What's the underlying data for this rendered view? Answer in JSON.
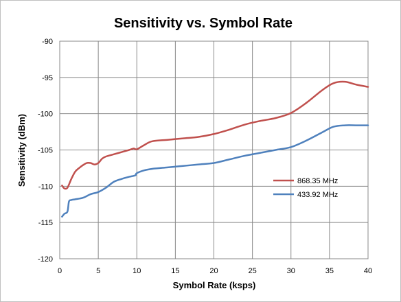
{
  "chart_data": {
    "type": "line",
    "title": "Sensitivity vs. Symbol Rate",
    "xlabel": "Symbol Rate (ksps)",
    "ylabel": "Sensitivity (dBm)",
    "xlim": [
      0,
      40
    ],
    "ylim": [
      -120,
      -90
    ],
    "xticks": [
      0,
      5,
      10,
      15,
      20,
      25,
      30,
      35,
      40
    ],
    "yticks": [
      -120,
      -115,
      -110,
      -105,
      -100,
      -95,
      -90
    ],
    "grid": true,
    "legend_position": "right",
    "series": [
      {
        "name": "868.35 MHz",
        "color": "#c0504d",
        "x": [
          0.3,
          0.6,
          1.0,
          1.5,
          2.0,
          2.5,
          3.0,
          3.5,
          4.0,
          4.5,
          5.0,
          5.5,
          6.0,
          7.0,
          8.0,
          9.0,
          9.6,
          10.0,
          11.0,
          12.0,
          14.0,
          16.0,
          18.0,
          20.0,
          22.0,
          24.0,
          26.0,
          28.0,
          30.0,
          32.0,
          34.0,
          35.5,
          37.0,
          38.5,
          40.0
        ],
        "values": [
          -109.9,
          -110.3,
          -110.2,
          -109.0,
          -108.0,
          -107.5,
          -107.1,
          -106.8,
          -106.8,
          -107.0,
          -106.8,
          -106.2,
          -105.9,
          -105.6,
          -105.3,
          -105.0,
          -104.8,
          -104.9,
          -104.3,
          -103.8,
          -103.6,
          -103.4,
          -103.2,
          -102.8,
          -102.2,
          -101.5,
          -101.0,
          -100.6,
          -99.9,
          -98.5,
          -96.8,
          -95.8,
          -95.6,
          -96.0,
          -96.3
        ]
      },
      {
        "name": "433.92 MHz",
        "color": "#4f81bd",
        "x": [
          0.3,
          0.6,
          1.0,
          1.2,
          1.5,
          2.0,
          3.0,
          4.0,
          5.0,
          6.0,
          7.0,
          8.0,
          9.0,
          9.8,
          10.0,
          11.0,
          12.0,
          14.0,
          16.0,
          18.0,
          20.0,
          22.0,
          24.0,
          26.0,
          28.0,
          30.0,
          32.0,
          34.0,
          35.5,
          37.0,
          38.5,
          40.0
        ],
        "values": [
          -114.2,
          -113.8,
          -113.5,
          -112.1,
          -111.9,
          -111.8,
          -111.6,
          -111.1,
          -110.8,
          -110.2,
          -109.4,
          -109.0,
          -108.7,
          -108.5,
          -108.2,
          -107.8,
          -107.6,
          -107.4,
          -107.2,
          -107.0,
          -106.8,
          -106.3,
          -105.8,
          -105.4,
          -105.0,
          -104.6,
          -103.7,
          -102.6,
          -101.8,
          -101.6,
          -101.6,
          -101.6
        ]
      }
    ]
  }
}
